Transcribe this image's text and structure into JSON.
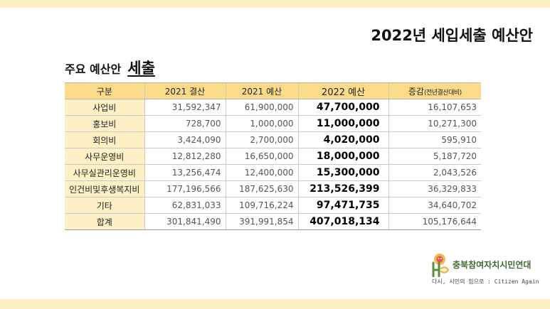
{
  "title": "2022년 세입세출 예산안",
  "subtitle": {
    "prefix": "주요 예산안",
    "emphasis": "세출"
  },
  "table": {
    "headers": [
      "구분",
      "2021 결산",
      "2021 예산",
      "2022 예산",
      "증감"
    ],
    "header_note": "(전년결산대비)",
    "rows": [
      {
        "label": "사업비",
        "settle_2021": "31,592,347",
        "budget_2021": "61,900,000",
        "budget_2022": "47,700,000",
        "change": "16,107,653"
      },
      {
        "label": "홍보비",
        "settle_2021": "728,700",
        "budget_2021": "1,000,000",
        "budget_2022": "11,000,000",
        "change": "10,271,300"
      },
      {
        "label": "회의비",
        "settle_2021": "3,424,090",
        "budget_2021": "2,700,000",
        "budget_2022": "4,020,000",
        "change": "595,910"
      },
      {
        "label": "사무운영비",
        "settle_2021": "12,812,280",
        "budget_2021": "16,650,000",
        "budget_2022": "18,000,000",
        "change": "5,187,720"
      },
      {
        "label": "사무실관리운영비",
        "settle_2021": "13,256,474",
        "budget_2021": "12,400,000",
        "budget_2022": "15,300,000",
        "change": "2,043,526"
      },
      {
        "label": "인건비및후생복지비",
        "settle_2021": "177,196,566",
        "budget_2021": "187,625,630",
        "budget_2022": "213,526,399",
        "change": "36,329,833"
      },
      {
        "label": "기타",
        "settle_2021": "62,831,033",
        "budget_2021": "109,716,224",
        "budget_2022": "97,471,735",
        "change": "34,640,702"
      },
      {
        "label": "합계",
        "settle_2021": "301,841,490",
        "budget_2021": "391,991,854",
        "budget_2022": "407,018,134",
        "change": "105,176,644"
      }
    ]
  },
  "logo": {
    "org_name": "충북참여자치시민연대",
    "tagline": "다시, 시민의 힘으로 : Citizen Again",
    "icon": "org-logo-mark"
  },
  "colors": {
    "band": "#fdf0c4",
    "header_fill": "#fbdb8a",
    "label_fill": "#fdf0c4",
    "logo_green": "#3e6a2f"
  }
}
